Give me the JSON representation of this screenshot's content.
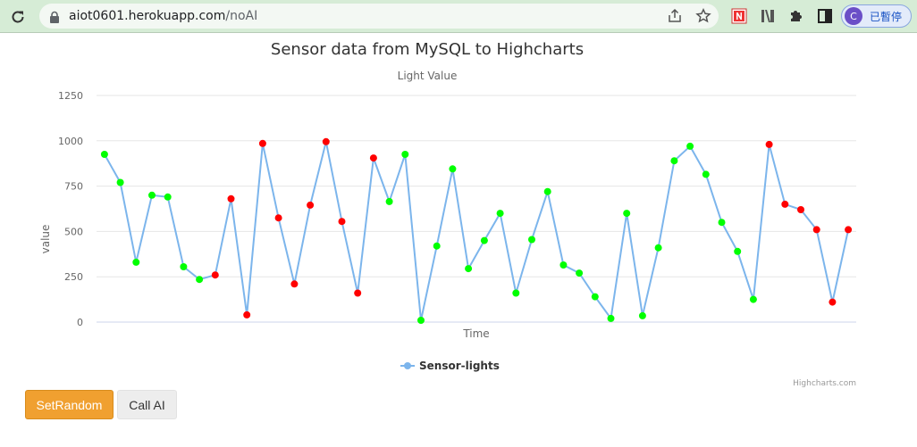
{
  "browser": {
    "url_host": "aiot0601.herokuapp.com",
    "url_path": "/noAI",
    "profile_initial": "C",
    "profile_status": "已暫停"
  },
  "colors": {
    "series_line": "#7cb5ec",
    "marker_high": "#ff0000",
    "marker_low": "#00ff00",
    "button_primary": "#f0a030",
    "button_secondary": "#ededed"
  },
  "buttons": {
    "set_random": "SetRandom",
    "call_ai": "Call AI"
  },
  "chart_data": {
    "type": "line",
    "title": "Sensor data from MySQL to Highcharts",
    "subtitle": "Light Value",
    "xlabel": "Time",
    "ylabel": "value",
    "ylim": [
      0,
      1250
    ],
    "yticks": [
      0,
      250,
      500,
      750,
      1000,
      1250
    ],
    "grid": true,
    "legend_position": "bottom-center",
    "credits": "Highcharts.com",
    "series": [
      {
        "name": "Sensor-lights",
        "values": [
          925,
          770,
          330,
          700,
          690,
          305,
          235,
          260,
          680,
          40,
          985,
          575,
          210,
          645,
          995,
          555,
          160,
          905,
          665,
          925,
          10,
          420,
          845,
          295,
          450,
          600,
          160,
          455,
          720,
          315,
          270,
          140,
          20,
          600,
          35,
          410,
          890,
          970,
          815,
          550,
          390,
          125,
          980,
          650,
          620,
          510,
          110,
          510
        ],
        "marker_colors": [
          "low",
          "low",
          "low",
          "low",
          "low",
          "low",
          "low",
          "high",
          "high",
          "high",
          "high",
          "high",
          "high",
          "high",
          "high",
          "high",
          "high",
          "high",
          "low",
          "low",
          "low",
          "low",
          "low",
          "low",
          "low",
          "low",
          "low",
          "low",
          "low",
          "low",
          "low",
          "low",
          "low",
          "low",
          "low",
          "low",
          "low",
          "low",
          "low",
          "low",
          "low",
          "low",
          "high",
          "high",
          "high",
          "high",
          "high",
          "high"
        ]
      }
    ]
  }
}
